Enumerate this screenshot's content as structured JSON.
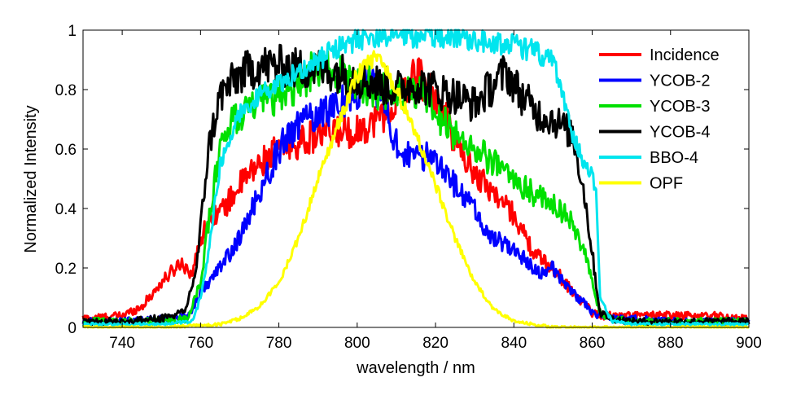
{
  "chart_data": {
    "type": "line",
    "title": "",
    "xlabel": "wavelength / nm",
    "ylabel": "Normalized Intensity",
    "xlim": [
      730,
      900
    ],
    "ylim": [
      0,
      1
    ],
    "xticks": [
      740,
      760,
      780,
      800,
      820,
      840,
      860,
      880,
      900
    ],
    "xtick_labels": [
      "740",
      "760",
      "780",
      "800",
      "820",
      "840",
      "860",
      "880",
      "900"
    ],
    "yticks": [
      0,
      0.2,
      0.4,
      0.6,
      0.8,
      1
    ],
    "ytick_labels": [
      "0",
      "0.2",
      "0.4",
      "0.6",
      "0.8",
      "1"
    ],
    "grid": false,
    "legend_position": "top-right",
    "series": [
      {
        "name": "Incidence",
        "color": "#ff0000",
        "x": [
          730,
          740,
          745,
          750,
          755,
          758,
          760,
          763,
          766,
          770,
          775,
          780,
          785,
          790,
          795,
          800,
          805,
          810,
          815,
          818,
          822,
          826,
          830,
          835,
          840,
          845,
          850,
          855,
          858,
          860,
          862,
          870,
          880,
          890,
          900
        ],
        "y": [
          0.03,
          0.04,
          0.07,
          0.15,
          0.22,
          0.18,
          0.3,
          0.38,
          0.4,
          0.48,
          0.55,
          0.6,
          0.62,
          0.65,
          0.66,
          0.66,
          0.7,
          0.75,
          0.85,
          0.82,
          0.72,
          0.6,
          0.52,
          0.45,
          0.38,
          0.25,
          0.2,
          0.12,
          0.08,
          0.05,
          0.04,
          0.04,
          0.04,
          0.04,
          0.03
        ]
      },
      {
        "name": "YCOB-2",
        "color": "#0000ff",
        "x": [
          730,
          740,
          750,
          757,
          760,
          765,
          770,
          775,
          780,
          785,
          790,
          795,
          800,
          803,
          806,
          810,
          814,
          818,
          822,
          826,
          830,
          834,
          838,
          842,
          846,
          850,
          855,
          860,
          865,
          870,
          880,
          890,
          900
        ],
        "y": [
          0.02,
          0.02,
          0.03,
          0.04,
          0.12,
          0.2,
          0.3,
          0.45,
          0.6,
          0.68,
          0.72,
          0.75,
          0.8,
          0.85,
          0.78,
          0.62,
          0.56,
          0.58,
          0.55,
          0.45,
          0.4,
          0.3,
          0.28,
          0.24,
          0.18,
          0.2,
          0.12,
          0.05,
          0.03,
          0.03,
          0.02,
          0.02,
          0.02
        ]
      },
      {
        "name": "YCOB-3",
        "color": "#00e000",
        "x": [
          730,
          740,
          750,
          757,
          760,
          763,
          766,
          770,
          775,
          780,
          785,
          790,
          795,
          800,
          805,
          810,
          815,
          820,
          825,
          830,
          835,
          840,
          845,
          850,
          855,
          858,
          860,
          862,
          865,
          870,
          880,
          890,
          900
        ],
        "y": [
          0.02,
          0.02,
          0.02,
          0.03,
          0.15,
          0.45,
          0.65,
          0.72,
          0.75,
          0.78,
          0.82,
          0.88,
          0.85,
          0.83,
          0.8,
          0.78,
          0.8,
          0.72,
          0.65,
          0.6,
          0.55,
          0.5,
          0.45,
          0.42,
          0.35,
          0.25,
          0.15,
          0.05,
          0.03,
          0.02,
          0.02,
          0.02,
          0.02
        ]
      },
      {
        "name": "YCOB-4",
        "color": "#000000",
        "x": [
          730,
          740,
          750,
          756,
          759,
          762,
          765,
          770,
          775,
          780,
          785,
          790,
          795,
          800,
          805,
          810,
          815,
          820,
          825,
          830,
          835,
          838,
          842,
          846,
          850,
          855,
          858,
          860,
          862,
          865,
          870,
          880,
          890,
          900
        ],
        "y": [
          0.02,
          0.02,
          0.03,
          0.05,
          0.2,
          0.6,
          0.78,
          0.85,
          0.88,
          0.88,
          0.87,
          0.87,
          0.86,
          0.84,
          0.82,
          0.8,
          0.82,
          0.8,
          0.78,
          0.75,
          0.82,
          0.86,
          0.78,
          0.72,
          0.7,
          0.65,
          0.45,
          0.25,
          0.05,
          0.03,
          0.02,
          0.02,
          0.02,
          0.02
        ]
      },
      {
        "name": "BBO-4",
        "color": "#00e5ee",
        "x": [
          730,
          740,
          750,
          758,
          760,
          762,
          765,
          770,
          775,
          780,
          785,
          790,
          795,
          800,
          805,
          810,
          815,
          820,
          825,
          830,
          835,
          840,
          845,
          850,
          852,
          855,
          858,
          860,
          861,
          862,
          865,
          870,
          880,
          890,
          900
        ],
        "y": [
          0.01,
          0.01,
          0.01,
          0.02,
          0.1,
          0.25,
          0.55,
          0.72,
          0.78,
          0.82,
          0.86,
          0.9,
          0.94,
          0.97,
          0.98,
          0.98,
          0.98,
          0.98,
          0.98,
          0.97,
          0.96,
          0.95,
          0.93,
          0.9,
          0.8,
          0.65,
          0.55,
          0.52,
          0.45,
          0.1,
          0.02,
          0.01,
          0.01,
          0.01,
          0.01
        ]
      },
      {
        "name": "OPF",
        "color": "#ffff00",
        "x": [
          730,
          750,
          765,
          770,
          775,
          780,
          785,
          790,
          795,
          800,
          805,
          810,
          815,
          820,
          825,
          830,
          835,
          840,
          850,
          860,
          880,
          900
        ],
        "y": [
          0.0,
          0.0,
          0.01,
          0.03,
          0.07,
          0.15,
          0.3,
          0.5,
          0.68,
          0.85,
          0.92,
          0.8,
          0.65,
          0.48,
          0.3,
          0.15,
          0.06,
          0.02,
          0.0,
          0.0,
          0.0,
          0.0
        ]
      }
    ]
  }
}
